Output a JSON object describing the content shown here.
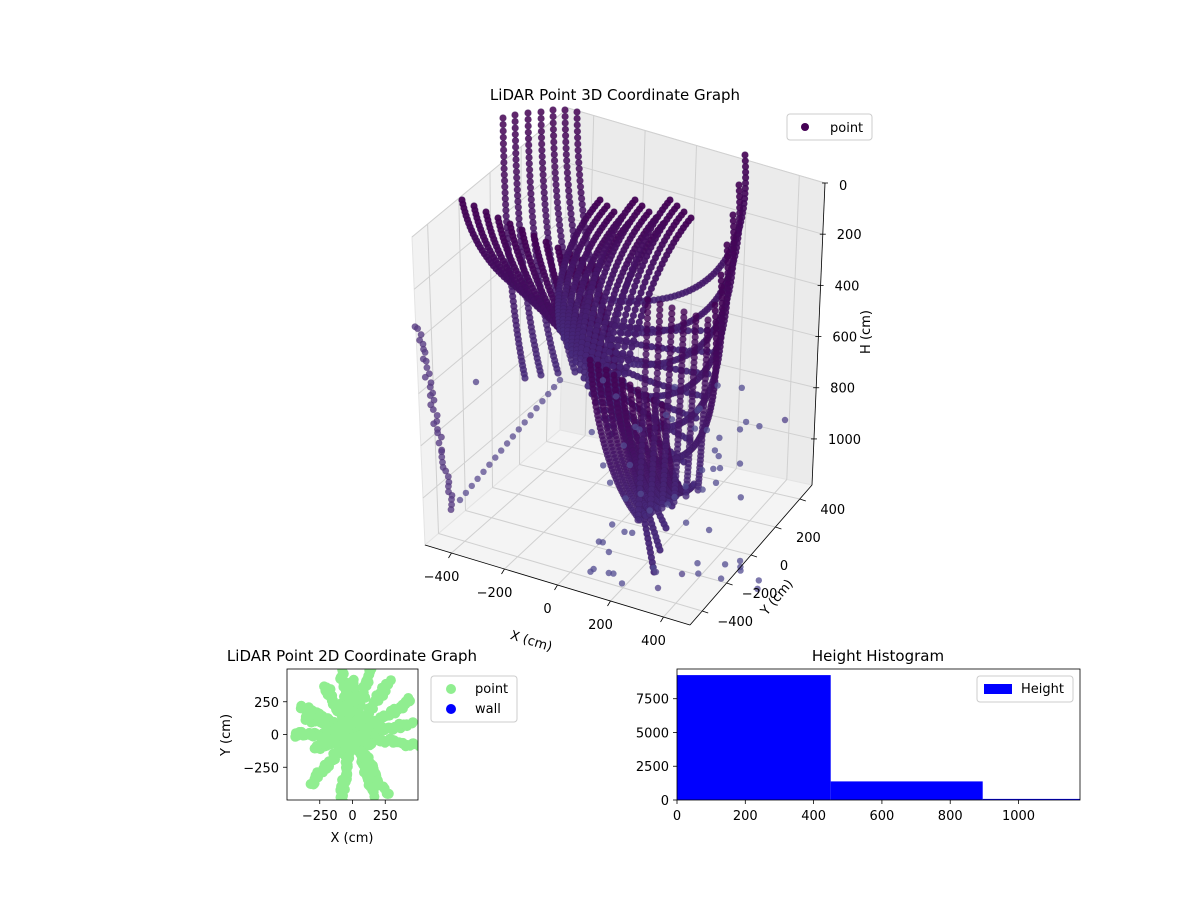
{
  "chart_data": [
    {
      "type": "scatter",
      "projection": "3d",
      "title": "LiDAR Point 3D Coordinate Graph",
      "xlabel": "X (cm)",
      "ylabel": "Y (cm)",
      "zlabel": "H (cm)",
      "xlim": [
        -500,
        500
      ],
      "ylim": [
        -500,
        500
      ],
      "zlim": [
        1180,
        0
      ],
      "z_inverted": true,
      "xticks": [
        "−400",
        "−200",
        "0",
        "200",
        "400"
      ],
      "yticks": [
        "400",
        "200",
        "0",
        "−200",
        "−400"
      ],
      "zticks": [
        "0",
        "200",
        "400",
        "600",
        "800",
        "1000"
      ],
      "legend": [
        "point"
      ],
      "legend_position": "top-right",
      "grid": true,
      "colormap": "viridis (dark purple to slate blue)",
      "series": [
        {
          "name": "point",
          "color": "#440154",
          "description": "curved LiDAR sweep arcs descending from the sensor; dense cluster near X≈0, sparse points reaching H≈1000"
        }
      ]
    },
    {
      "type": "scatter",
      "title": "LiDAR Point 2D Coordinate Graph",
      "xlabel": "X (cm)",
      "ylabel": "Y (cm)",
      "xlim": [
        -500,
        500
      ],
      "ylim": [
        -500,
        500
      ],
      "xticks": [
        "−250",
        "0",
        "250"
      ],
      "yticks": [
        "250",
        "0",
        "−250"
      ],
      "legend_position": "outside-right",
      "series": [
        {
          "name": "point",
          "color": "#90ee90"
        },
        {
          "name": "wall",
          "color": "#0000ff"
        }
      ]
    },
    {
      "type": "bar",
      "subtype": "histogram",
      "title": "Height Histogram",
      "xlim": [
        0,
        1180
      ],
      "ylim": [
        0,
        9700
      ],
      "xticks": [
        "0",
        "200",
        "400",
        "600",
        "800",
        "1000"
      ],
      "yticks": [
        "0",
        "2500",
        "5000",
        "7500"
      ],
      "legend_position": "top-right",
      "bins": [
        {
          "x0": 0,
          "x1": 450,
          "value": 9250
        },
        {
          "x0": 450,
          "x1": 895,
          "value": 1380
        },
        {
          "x0": 895,
          "x1": 1180,
          "value": 80
        }
      ],
      "series": [
        {
          "name": "Height",
          "color": "#0000ff"
        }
      ]
    }
  ]
}
